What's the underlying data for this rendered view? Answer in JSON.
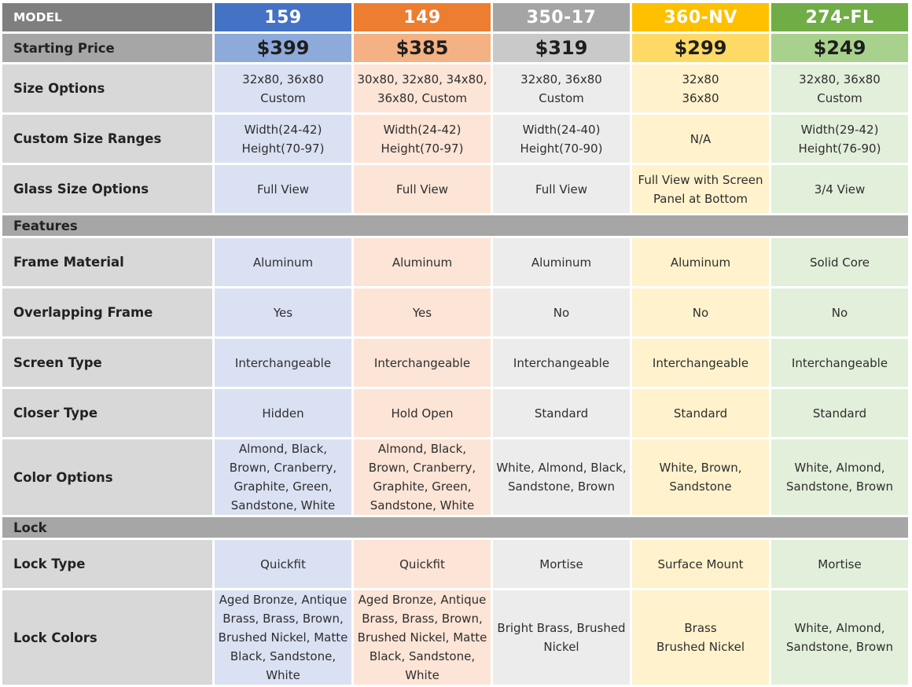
{
  "colors": {
    "models": [
      {
        "header": "#4472c4",
        "price": "#8eaadb",
        "cell": "#dae1f3"
      },
      {
        "header": "#ed7d31",
        "price": "#f4b183",
        "cell": "#fce4d6"
      },
      {
        "header": "#a5a5a5",
        "price": "#c9c9c9",
        "cell": "#ececec"
      },
      {
        "header": "#ffc000",
        "price": "#ffd966",
        "cell": "#fff2cc"
      },
      {
        "header": "#70ad47",
        "price": "#a9d18e",
        "cell": "#e2efda"
      }
    ]
  },
  "header": {
    "label": "MODEL",
    "models": [
      "159",
      "149",
      "350-17",
      "360-NV",
      "274-FL"
    ]
  },
  "price": {
    "label": "Starting Price",
    "values": [
      "$399",
      "$385",
      "$319",
      "$299",
      "$249"
    ]
  },
  "rows_top": [
    {
      "label": "Size Options",
      "values": [
        "32x80, 36x80\nCustom",
        "30x80, 32x80, 34x80,\n36x80, Custom",
        "32x80, 36x80\nCustom",
        "32x80\n36x80",
        "32x80, 36x80\nCustom"
      ]
    },
    {
      "label": "Custom Size Ranges",
      "values": [
        "Width(24-42)\nHeight(70-97)",
        "Width(24-42)\nHeight(70-97)",
        "Width(24-40)\nHeight(70-90)",
        "N/A",
        "Width(29-42)\nHeight(76-90)"
      ]
    },
    {
      "label": "Glass Size Options",
      "values": [
        "Full View",
        "Full View",
        "Full View",
        "Full View with Screen\nPanel at Bottom",
        "3/4 View"
      ]
    }
  ],
  "section_features": "Features",
  "rows_features": [
    {
      "label": "Frame Material",
      "values": [
        "Aluminum",
        "Aluminum",
        "Aluminum",
        "Aluminum",
        "Solid Core"
      ]
    },
    {
      "label": "Overlapping Frame",
      "values": [
        "Yes",
        "Yes",
        "No",
        "No",
        "No"
      ]
    },
    {
      "label": "Screen Type",
      "values": [
        "Interchangeable",
        "Interchangeable",
        "Interchangeable",
        "Interchangeable",
        "Interchangeable"
      ]
    },
    {
      "label": "Closer Type",
      "values": [
        "Hidden",
        "Hold Open",
        "Standard",
        "Standard",
        "Standard"
      ]
    },
    {
      "label": "Color Options",
      "values": [
        "Almond, Black,\nBrown, Cranberry,\nGraphite, Green,\nSandstone, White",
        "Almond, Black,\nBrown, Cranberry,\nGraphite, Green,\nSandstone, White",
        "White, Almond, Black,\nSandstone, Brown",
        "White, Brown,\nSandstone",
        "White, Almond,\nSandstone, Brown"
      ]
    }
  ],
  "section_lock": "Lock",
  "rows_lock": [
    {
      "label": "Lock Type",
      "values": [
        "Quickfit",
        "Quickfit",
        "Mortise",
        "Surface Mount",
        "Mortise"
      ]
    },
    {
      "label": "Lock Colors",
      "values": [
        "Aged Bronze, Antique\nBrass, Brass, Brown,\nBrushed Nickel, Matte\nBlack, Sandstone,\nWhite",
        "Aged Bronze, Antique\nBrass, Brass, Brown,\nBrushed Nickel, Matte\nBlack, Sandstone,\nWhite",
        "Bright Brass, Brushed\nNickel",
        "Brass\nBrushed Nickel",
        "White, Almond,\nSandstone, Brown"
      ]
    }
  ]
}
